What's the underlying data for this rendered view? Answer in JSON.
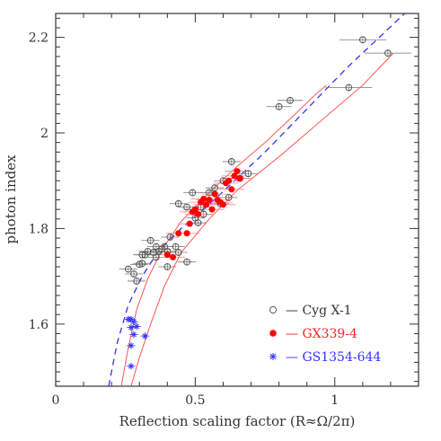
{
  "chart_data": {
    "type": "scatter",
    "title": "",
    "xlabel": "Reflection scaling factor (R≈Ω/2π)",
    "ylabel": "photon index",
    "xlim": [
      0,
      1.3
    ],
    "ylim": [
      1.47,
      2.25
    ],
    "xticks": [
      "0",
      "0.5",
      "1"
    ],
    "yticks": [
      "1.6",
      "1.8",
      "2",
      "2.2"
    ],
    "legend_placement": "bottom-right",
    "series": [
      {
        "name": "— Cyg X-1",
        "marker": "open-circle",
        "color": "#555555",
        "points": [
          [
            0.26,
            1.715
          ],
          [
            0.28,
            1.705
          ],
          [
            0.3,
            1.725
          ],
          [
            0.31,
            1.727
          ],
          [
            0.29,
            1.69
          ],
          [
            0.31,
            1.745
          ],
          [
            0.32,
            1.745
          ],
          [
            0.33,
            1.752
          ],
          [
            0.35,
            1.75
          ],
          [
            0.36,
            1.74
          ],
          [
            0.34,
            1.775
          ],
          [
            0.36,
            1.762
          ],
          [
            0.37,
            1.752
          ],
          [
            0.38,
            1.757
          ],
          [
            0.39,
            1.762
          ],
          [
            0.4,
            1.752
          ],
          [
            0.41,
            1.782
          ],
          [
            0.43,
            1.762
          ],
          [
            0.44,
            1.75
          ],
          [
            0.47,
            1.73
          ],
          [
            0.4,
            1.72
          ],
          [
            0.44,
            1.852
          ],
          [
            0.47,
            1.845
          ],
          [
            0.49,
            1.875
          ],
          [
            0.5,
            1.822
          ],
          [
            0.51,
            1.812
          ],
          [
            0.52,
            1.845
          ],
          [
            0.53,
            1.83
          ],
          [
            0.55,
            1.875
          ],
          [
            0.57,
            1.885
          ],
          [
            0.59,
            1.852
          ],
          [
            0.6,
            1.9
          ],
          [
            0.62,
            1.865
          ],
          [
            0.63,
            1.94
          ],
          [
            0.66,
            1.905
          ],
          [
            0.69,
            1.915
          ],
          [
            0.8,
            2.055
          ],
          [
            0.84,
            2.068
          ],
          [
            1.05,
            2.095
          ],
          [
            1.1,
            2.195
          ],
          [
            1.19,
            2.167
          ]
        ]
      },
      {
        "name": "— GX339-4",
        "marker": "filled-circle",
        "color": "#ff0000",
        "points": [
          [
            0.44,
            1.79
          ],
          [
            0.47,
            1.79
          ],
          [
            0.48,
            1.81
          ],
          [
            0.49,
            1.835
          ],
          [
            0.5,
            1.84
          ],
          [
            0.51,
            1.83
          ],
          [
            0.52,
            1.855
          ],
          [
            0.53,
            1.862
          ],
          [
            0.54,
            1.85
          ],
          [
            0.55,
            1.86
          ],
          [
            0.56,
            1.84
          ],
          [
            0.57,
            1.872
          ],
          [
            0.58,
            1.86
          ],
          [
            0.59,
            1.855
          ],
          [
            0.6,
            1.85
          ],
          [
            0.61,
            1.895
          ],
          [
            0.62,
            1.9
          ],
          [
            0.63,
            1.882
          ],
          [
            0.64,
            1.91
          ],
          [
            0.65,
            1.92
          ],
          [
            0.66,
            1.905
          ],
          [
            0.4,
            1.745
          ],
          [
            0.42,
            1.74
          ]
        ]
      },
      {
        "name": "— GS1354-644",
        "marker": "star",
        "color": "#3333ff",
        "points": [
          [
            0.26,
            1.61
          ],
          [
            0.27,
            1.61
          ],
          [
            0.28,
            1.605
          ],
          [
            0.27,
            1.593
          ],
          [
            0.29,
            1.595
          ],
          [
            0.28,
            1.578
          ],
          [
            0.27,
            1.555
          ],
          [
            0.27,
            1.512
          ],
          [
            0.32,
            1.575
          ]
        ]
      }
    ],
    "curves": [
      {
        "style": "solid",
        "color": "#ff4444",
        "points": [
          [
            0.235,
            1.47
          ],
          [
            0.26,
            1.55
          ],
          [
            0.29,
            1.63
          ],
          [
            0.33,
            1.695
          ],
          [
            0.38,
            1.755
          ],
          [
            0.45,
            1.815
          ],
          [
            0.55,
            1.875
          ],
          [
            0.65,
            1.93
          ],
          [
            0.75,
            1.98
          ],
          [
            0.85,
            2.035
          ],
          [
            0.93,
            2.08
          ],
          [
            0.97,
            2.1
          ]
        ]
      },
      {
        "style": "solid",
        "color": "#ff4444",
        "points": [
          [
            0.27,
            1.47
          ],
          [
            0.3,
            1.53
          ],
          [
            0.34,
            1.6
          ],
          [
            0.39,
            1.68
          ],
          [
            0.45,
            1.75
          ],
          [
            0.55,
            1.82
          ],
          [
            0.65,
            1.88
          ],
          [
            0.8,
            1.95
          ],
          [
            0.95,
            2.025
          ],
          [
            1.1,
            2.1
          ],
          [
            1.21,
            2.167
          ]
        ]
      },
      {
        "style": "dashed",
        "color": "#3333ee",
        "points": [
          [
            0.19,
            1.47
          ],
          [
            0.22,
            1.56
          ],
          [
            0.26,
            1.64
          ],
          [
            0.31,
            1.7
          ],
          [
            0.37,
            1.755
          ],
          [
            0.45,
            1.8
          ],
          [
            0.55,
            1.85
          ],
          [
            0.65,
            1.905
          ],
          [
            0.75,
            1.96
          ],
          [
            0.85,
            2.02
          ],
          [
            0.95,
            2.08
          ],
          [
            1.05,
            2.14
          ],
          [
            1.15,
            2.195
          ],
          [
            1.25,
            2.25
          ]
        ]
      }
    ]
  }
}
